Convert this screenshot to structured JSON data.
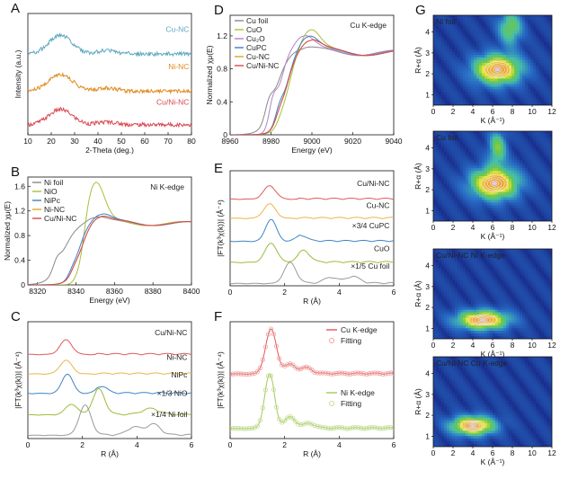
{
  "chart_data": [
    {
      "id": "A",
      "type": "line",
      "panel_label": "A",
      "xlabel": "2-Theta (deg.)",
      "ylabel": "Intensity (a.u.)",
      "xlim": [
        10,
        80
      ],
      "ylim": [
        0,
        3.6
      ],
      "xticks": [
        10,
        20,
        30,
        40,
        50,
        60,
        70,
        80
      ],
      "series": [
        {
          "name": "Cu-NC",
          "color": "#5fa7c0",
          "offset": 2.4,
          "kind": "xrd",
          "peak": 24,
          "peak2": 44,
          "amp": 0.55
        },
        {
          "name": "Ni-NC",
          "color": "#e08a1e",
          "offset": 1.3,
          "kind": "xrd",
          "peak": 24,
          "peak2": 44,
          "amp": 0.5
        },
        {
          "name": "Cu/Ni-NC",
          "color": "#d9474f",
          "offset": 0.3,
          "kind": "xrd",
          "peak": 24,
          "peak2": 44,
          "amp": 0.45
        }
      ],
      "annotations": [
        {
          "text": "Cu-NC",
          "x": 79,
          "y": 3.05,
          "color": "#5fa7c0"
        },
        {
          "text": "Ni-NC",
          "x": 79,
          "y": 1.95,
          "color": "#e08a1e"
        },
        {
          "text": "Cu/Ni-NC",
          "x": 79,
          "y": 0.9,
          "color": "#d9474f"
        }
      ]
    },
    {
      "id": "B",
      "type": "line",
      "panel_label": "B",
      "title": "Ni K-edge",
      "xlabel": "Energy (eV)",
      "ylabel": "Normalized χμ(E)",
      "xlim": [
        8315,
        8400
      ],
      "ylim": [
        0,
        1.75
      ],
      "xticks": [
        8320,
        8340,
        8360,
        8380,
        8400
      ],
      "yticks": [
        0.0,
        0.4,
        0.8,
        1.2,
        1.6
      ],
      "series": [
        {
          "name": "Ni foil",
          "color": "#888888",
          "kind": "xanes",
          "e0": 8333,
          "w": 3.5,
          "wl": 1.1,
          "wlpos": 8350,
          "pre": 0.25
        },
        {
          "name": "NiO",
          "color": "#a7c03a",
          "kind": "xanes",
          "e0": 8344,
          "w": 1.6,
          "wl": 1.68,
          "wlpos": 8350,
          "pre": 0.05
        },
        {
          "name": "NiPc",
          "color": "#3b7fc9",
          "kind": "xanes",
          "e0": 8341,
          "w": 2.5,
          "wl": 1.15,
          "wlpos": 8353,
          "pre": 0.12
        },
        {
          "name": "Ni-NC",
          "color": "#e0a520",
          "kind": "xanes",
          "e0": 8342,
          "w": 2.8,
          "wl": 1.12,
          "wlpos": 8352,
          "pre": 0.1
        },
        {
          "name": "Cu/Ni-NC",
          "color": "#d9474f",
          "kind": "xanes",
          "e0": 8342,
          "w": 2.8,
          "wl": 1.12,
          "wlpos": 8352,
          "pre": 0.1
        }
      ]
    },
    {
      "id": "C",
      "type": "line",
      "panel_label": "C",
      "xlabel": "R (Å)",
      "ylabel": "|FT(k³χ(k))| (Å⁻⁴)",
      "xlim": [
        0,
        6
      ],
      "ylim": [
        0,
        6
      ],
      "xticks": [
        0,
        2,
        4,
        6
      ],
      "series": [
        {
          "name": "Cu/Ni-NC",
          "color": "#e0585b",
          "offset": 4.3,
          "kind": "ft",
          "peaks": [
            [
              1.4,
              0.75,
              0.22
            ]
          ]
        },
        {
          "name": "Ni-NC",
          "color": "#e8b64a",
          "offset": 3.3,
          "kind": "ft",
          "peaks": [
            [
              1.4,
              0.7,
              0.22
            ]
          ]
        },
        {
          "name": "NiPc",
          "color": "#3f84c4",
          "offset": 2.3,
          "kind": "ft",
          "peaks": [
            [
              1.45,
              1.0,
              0.2
            ],
            [
              2.7,
              0.35,
              0.2
            ]
          ]
        },
        {
          "name": "×1/3 NiO",
          "color": "#9bbb3a",
          "offset": 1.2,
          "kind": "ft",
          "peaks": [
            [
              1.6,
              0.55,
              0.22
            ],
            [
              2.6,
              1.3,
              0.22
            ],
            [
              4.5,
              0.3,
              0.3
            ]
          ]
        },
        {
          "name": "×1/4 Ni foil",
          "color": "#9a9a9a",
          "offset": 0.15,
          "kind": "ft",
          "peaks": [
            [
              2.1,
              1.55,
              0.22
            ],
            [
              3.9,
              0.4,
              0.25
            ],
            [
              4.6,
              0.55,
              0.25
            ]
          ]
        }
      ],
      "annotations": [
        {
          "text": "Cu/Ni-NC",
          "x": 5.85,
          "y": 5.3
        },
        {
          "text": "Ni-NC",
          "x": 5.85,
          "y": 4.05
        },
        {
          "text": "NiPc",
          "x": 5.85,
          "y": 3.15
        },
        {
          "text": "×1/3 NiO",
          "x": 5.85,
          "y": 2.2
        },
        {
          "text": "×1/4 Ni foil",
          "x": 5.85,
          "y": 1.1
        }
      ]
    },
    {
      "id": "D",
      "type": "line",
      "panel_label": "D",
      "title": "Cu K-edge",
      "xlabel": "Energy (eV)",
      "ylabel": "Normalized χμ(E)",
      "xlim": [
        8960,
        9040
      ],
      "ylim": [
        0,
        1.45
      ],
      "xticks": [
        8960,
        8980,
        9000,
        9020,
        9040
      ],
      "yticks": [
        0.0,
        0.4,
        0.8,
        1.2
      ],
      "series": [
        {
          "name": "Cu foil",
          "color": "#888888",
          "kind": "xanes",
          "e0": 8982,
          "w": 3,
          "wl": 1.05,
          "wlpos": 8995,
          "pre": 0.3
        },
        {
          "name": "CuO",
          "color": "#a7c03a",
          "kind": "xanes",
          "e0": 8988,
          "w": 2.5,
          "wl": 1.28,
          "wlpos": 8999,
          "pre": 0.08
        },
        {
          "name": "Cu₂O",
          "color": "#b283c7",
          "kind": "xanes",
          "e0": 8984,
          "w": 2.0,
          "wl": 1.2,
          "wlpos": 8996,
          "pre": 0.5
        },
        {
          "name": "CuPC",
          "color": "#3b7fc9",
          "kind": "xanes",
          "e0": 8987,
          "w": 2.5,
          "wl": 1.2,
          "wlpos": 8998,
          "pre": 0.25
        },
        {
          "name": "Cu-NC",
          "color": "#e0a520",
          "kind": "xanes",
          "e0": 8987,
          "w": 2.5,
          "wl": 1.15,
          "wlpos": 8999,
          "pre": 0.15
        },
        {
          "name": "Cu/Ni-NC",
          "color": "#d9474f",
          "kind": "xanes",
          "e0": 8987,
          "w": 2.5,
          "wl": 1.15,
          "wlpos": 8999,
          "pre": 0.15
        }
      ]
    },
    {
      "id": "E",
      "type": "line",
      "panel_label": "E",
      "xlabel": "R (Å)",
      "ylabel": "|FT(k³χ(k))| (Å⁻⁴)",
      "xlim": [
        0,
        6
      ],
      "ylim": [
        0,
        6
      ],
      "xticks": [
        0,
        2,
        4,
        6
      ],
      "series": [
        {
          "name": "Cu/Ni-NC",
          "color": "#e0585b",
          "offset": 4.5,
          "kind": "ft",
          "peaks": [
            [
              1.45,
              0.7,
              0.22
            ]
          ]
        },
        {
          "name": "Cu-NC",
          "color": "#e8b64a",
          "offset": 3.5,
          "kind": "ft",
          "peaks": [
            [
              1.45,
              0.75,
              0.22
            ]
          ]
        },
        {
          "name": "×3/4 CuPC",
          "color": "#3f84c4",
          "offset": 2.3,
          "kind": "ft",
          "peaks": [
            [
              1.5,
              1.15,
              0.2
            ],
            [
              2.6,
              0.3,
              0.2
            ]
          ]
        },
        {
          "name": "CuO",
          "color": "#9bbb3a",
          "offset": 1.2,
          "kind": "ft",
          "peaks": [
            [
              1.5,
              1.0,
              0.22
            ],
            [
              2.7,
              0.6,
              0.22
            ]
          ]
        },
        {
          "name": "×1/5 Cu foil",
          "color": "#9a9a9a",
          "offset": 0.1,
          "kind": "ft",
          "peaks": [
            [
              2.2,
              1.1,
              0.22
            ],
            [
              3.7,
              0.3,
              0.25
            ],
            [
              4.5,
              0.35,
              0.25
            ]
          ]
        }
      ],
      "annotations": [
        {
          "text": "Cu/Ni-NC",
          "x": 5.85,
          "y": 5.2
        },
        {
          "text": "Cu-NC",
          "x": 5.85,
          "y": 4.05
        },
        {
          "text": "×3/4 CuPC",
          "x": 5.85,
          "y": 3.0
        },
        {
          "text": "CuO",
          "x": 5.85,
          "y": 1.8
        },
        {
          "text": "×1/5 Cu foil",
          "x": 5.85,
          "y": 0.9
        }
      ]
    },
    {
      "id": "F",
      "type": "line",
      "panel_label": "F",
      "xlabel": "R (Å)",
      "ylabel": "|FT(k³χ(k))| (Å⁻⁴)",
      "xlim": [
        0,
        6
      ],
      "ylim": [
        0,
        6
      ],
      "xticks": [
        0,
        2,
        4,
        6
      ],
      "series": [
        {
          "name": "Cu K-edge",
          "color": "#e0585b",
          "offset": 3.3,
          "kind": "ft",
          "peaks": [
            [
              1.5,
              2.3,
              0.2
            ],
            [
              2.2,
              0.5,
              0.2
            ],
            [
              2.8,
              0.3,
              0.2
            ]
          ]
        },
        {
          "name": "Ni K-edge",
          "color": "#a4c95a",
          "offset": 0.5,
          "kind": "ft",
          "peaks": [
            [
              1.45,
              2.8,
              0.18
            ],
            [
              2.2,
              0.6,
              0.2
            ],
            [
              2.9,
              0.25,
              0.2
            ]
          ]
        }
      ],
      "fit_points": [
        {
          "name": "Fitting",
          "color": "#f0a0a0",
          "offset": 3.3,
          "peaks": [
            [
              1.5,
              2.3,
              0.2
            ],
            [
              2.2,
              0.5,
              0.2
            ],
            [
              2.8,
              0.3,
              0.2
            ]
          ]
        },
        {
          "name": "Fitting",
          "color": "#c3dc94",
          "offset": 0.5,
          "peaks": [
            [
              1.45,
              2.8,
              0.18
            ],
            [
              2.2,
              0.6,
              0.2
            ],
            [
              2.9,
              0.25,
              0.2
            ]
          ]
        }
      ]
    },
    {
      "id": "G1",
      "type": "heatmap",
      "panel_label": "G",
      "title": "Ni foil",
      "xlabel": "K (Å⁻¹)",
      "ylabel": "R+α (Å)",
      "xlim": [
        0,
        12
      ],
      "ylim": [
        0.5,
        4.8
      ],
      "xticks": [
        0,
        2,
        4,
        6,
        8,
        10,
        12
      ],
      "yticks": [
        1,
        2,
        3,
        4
      ],
      "center": [
        6.5,
        2.2
      ],
      "spread": [
        2.4,
        0.7
      ],
      "extra": [
        [
          7.8,
          4.2,
          1.2,
          0.8
        ]
      ]
    },
    {
      "id": "G2",
      "type": "heatmap",
      "title": "Cu foil",
      "xlabel": "K (Å⁻¹)",
      "ylabel": "R+α (Å)",
      "xlim": [
        0,
        12
      ],
      "ylim": [
        0.5,
        4.8
      ],
      "xticks": [
        0,
        2,
        4,
        6,
        8,
        10,
        12
      ],
      "yticks": [
        1,
        2,
        3,
        4
      ],
      "center": [
        6.2,
        2.3
      ],
      "spread": [
        2.4,
        0.75
      ],
      "extra": [
        [
          6.5,
          4.0,
          0.9,
          0.8
        ]
      ]
    },
    {
      "id": "G3",
      "type": "heatmap",
      "title": "Cu/Ni-NC Ni K-edge",
      "xlabel": "K (Å⁻¹)",
      "ylabel": "R+α (Å)",
      "xlim": [
        0,
        12
      ],
      "ylim": [
        0.5,
        4.8
      ],
      "xticks": [
        0,
        2,
        4,
        6,
        8,
        10,
        12
      ],
      "yticks": [
        1,
        2,
        3,
        4
      ],
      "center": [
        5.0,
        1.4
      ],
      "spread": [
        2.6,
        0.45
      ],
      "extra": []
    },
    {
      "id": "G4",
      "type": "heatmap",
      "title": "Cu/Ni-NC Cu K-edge",
      "xlabel": "K (Å⁻¹)",
      "ylabel": "R+α (Å)",
      "xlim": [
        0,
        12
      ],
      "ylim": [
        0.5,
        4.8
      ],
      "xticks": [
        0,
        2,
        4,
        6,
        8,
        10,
        12
      ],
      "yticks": [
        1,
        2,
        3,
        4
      ],
      "center": [
        4.0,
        1.5
      ],
      "spread": [
        2.2,
        0.45
      ],
      "extra": []
    }
  ]
}
